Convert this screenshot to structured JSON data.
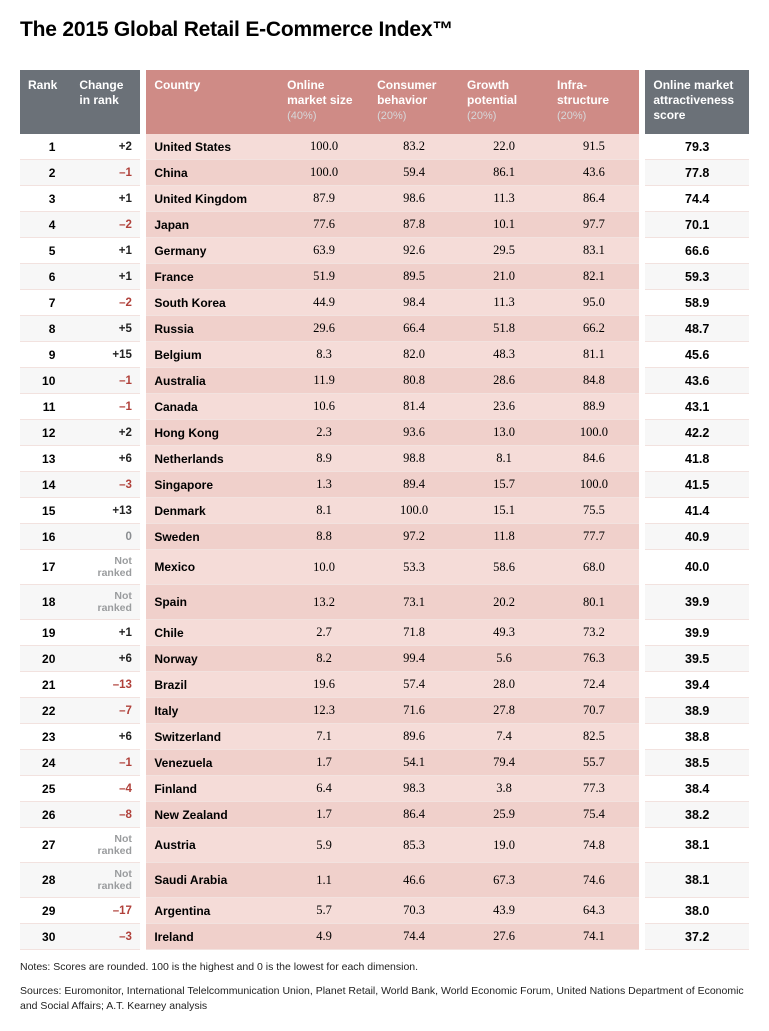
{
  "title": "The 2015 Global Retail E-Commerce Index™",
  "columns": {
    "rank": "Rank",
    "change": "Change in rank",
    "country": "Country",
    "market": "Online market size",
    "market_sub": "(40%)",
    "behavior": "Consumer behavior",
    "behavior_sub": "(20%)",
    "growth": "Growth potential",
    "growth_sub": "(20%)",
    "infra": "Infra-structure",
    "infra_sub": "(20%)",
    "score": "Online market attractiveness score"
  },
  "change_colors": {
    "pos": "#222222",
    "neg": "#b0403a",
    "zero": "#8a8d90",
    "nr": "#9a9c9e"
  },
  "bg_colors": {
    "header_grey": "#6b7178",
    "header_pink": "#cf8b86",
    "row_pink_a": "#f5dcd8",
    "row_pink_b": "#f0d0cb",
    "row_white_b": "#f7f7f7"
  },
  "rows": [
    {
      "rank": "1",
      "change": "+2",
      "ctype": "pos",
      "country": "United States",
      "market": "100.0",
      "behavior": "83.2",
      "growth": "22.0",
      "infra": "91.5",
      "score": "79.3"
    },
    {
      "rank": "2",
      "change": "–1",
      "ctype": "neg",
      "country": "China",
      "market": "100.0",
      "behavior": "59.4",
      "growth": "86.1",
      "infra": "43.6",
      "score": "77.8"
    },
    {
      "rank": "3",
      "change": "+1",
      "ctype": "pos",
      "country": "United Kingdom",
      "market": "87.9",
      "behavior": "98.6",
      "growth": "11.3",
      "infra": "86.4",
      "score": "74.4"
    },
    {
      "rank": "4",
      "change": "–2",
      "ctype": "neg",
      "country": "Japan",
      "market": "77.6",
      "behavior": "87.8",
      "growth": "10.1",
      "infra": "97.7",
      "score": "70.1"
    },
    {
      "rank": "5",
      "change": "+1",
      "ctype": "pos",
      "country": "Germany",
      "market": "63.9",
      "behavior": "92.6",
      "growth": "29.5",
      "infra": "83.1",
      "score": "66.6"
    },
    {
      "rank": "6",
      "change": "+1",
      "ctype": "pos",
      "country": "France",
      "market": "51.9",
      "behavior": "89.5",
      "growth": "21.0",
      "infra": "82.1",
      "score": "59.3"
    },
    {
      "rank": "7",
      "change": "–2",
      "ctype": "neg",
      "country": "South Korea",
      "market": "44.9",
      "behavior": "98.4",
      "growth": "11.3",
      "infra": "95.0",
      "score": "58.9"
    },
    {
      "rank": "8",
      "change": "+5",
      "ctype": "pos",
      "country": "Russia",
      "market": "29.6",
      "behavior": "66.4",
      "growth": "51.8",
      "infra": "66.2",
      "score": "48.7"
    },
    {
      "rank": "9",
      "change": "+15",
      "ctype": "pos",
      "country": "Belgium",
      "market": "8.3",
      "behavior": "82.0",
      "growth": "48.3",
      "infra": "81.1",
      "score": "45.6"
    },
    {
      "rank": "10",
      "change": "–1",
      "ctype": "neg",
      "country": "Australia",
      "market": "11.9",
      "behavior": "80.8",
      "growth": "28.6",
      "infra": "84.8",
      "score": "43.6"
    },
    {
      "rank": "11",
      "change": "–1",
      "ctype": "neg",
      "country": "Canada",
      "market": "10.6",
      "behavior": "81.4",
      "growth": "23.6",
      "infra": "88.9",
      "score": "43.1"
    },
    {
      "rank": "12",
      "change": "+2",
      "ctype": "pos",
      "country": "Hong Kong",
      "market": "2.3",
      "behavior": "93.6",
      "growth": "13.0",
      "infra": "100.0",
      "score": "42.2"
    },
    {
      "rank": "13",
      "change": "+6",
      "ctype": "pos",
      "country": "Netherlands",
      "market": "8.9",
      "behavior": "98.8",
      "growth": "8.1",
      "infra": "84.6",
      "score": "41.8"
    },
    {
      "rank": "14",
      "change": "–3",
      "ctype": "neg",
      "country": "Singapore",
      "market": "1.3",
      "behavior": "89.4",
      "growth": "15.7",
      "infra": "100.0",
      "score": "41.5"
    },
    {
      "rank": "15",
      "change": "+13",
      "ctype": "pos",
      "country": "Denmark",
      "market": "8.1",
      "behavior": "100.0",
      "growth": "15.1",
      "infra": "75.5",
      "score": "41.4"
    },
    {
      "rank": "16",
      "change": "0",
      "ctype": "zero",
      "country": "Sweden",
      "market": "8.8",
      "behavior": "97.2",
      "growth": "11.8",
      "infra": "77.7",
      "score": "40.9"
    },
    {
      "rank": "17",
      "change": "Not ranked",
      "ctype": "nr",
      "country": "Mexico",
      "market": "10.0",
      "behavior": "53.3",
      "growth": "58.6",
      "infra": "68.0",
      "score": "40.0"
    },
    {
      "rank": "18",
      "change": "Not ranked",
      "ctype": "nr",
      "country": "Spain",
      "market": "13.2",
      "behavior": "73.1",
      "growth": "20.2",
      "infra": "80.1",
      "score": "39.9"
    },
    {
      "rank": "19",
      "change": "+1",
      "ctype": "pos",
      "country": "Chile",
      "market": "2.7",
      "behavior": "71.8",
      "growth": "49.3",
      "infra": "73.2",
      "score": "39.9"
    },
    {
      "rank": "20",
      "change": "+6",
      "ctype": "pos",
      "country": "Norway",
      "market": "8.2",
      "behavior": "99.4",
      "growth": "5.6",
      "infra": "76.3",
      "score": "39.5"
    },
    {
      "rank": "21",
      "change": "–13",
      "ctype": "neg",
      "country": "Brazil",
      "market": "19.6",
      "behavior": "57.4",
      "growth": "28.0",
      "infra": "72.4",
      "score": "39.4"
    },
    {
      "rank": "22",
      "change": "–7",
      "ctype": "neg",
      "country": "Italy",
      "market": "12.3",
      "behavior": "71.6",
      "growth": "27.8",
      "infra": "70.7",
      "score": "38.9"
    },
    {
      "rank": "23",
      "change": "+6",
      "ctype": "pos",
      "country": "Switzerland",
      "market": "7.1",
      "behavior": "89.6",
      "growth": "7.4",
      "infra": "82.5",
      "score": "38.8"
    },
    {
      "rank": "24",
      "change": "–1",
      "ctype": "neg",
      "country": "Venezuela",
      "market": "1.7",
      "behavior": "54.1",
      "growth": "79.4",
      "infra": "55.7",
      "score": "38.5"
    },
    {
      "rank": "25",
      "change": "–4",
      "ctype": "neg",
      "country": "Finland",
      "market": "6.4",
      "behavior": "98.3",
      "growth": "3.8",
      "infra": "77.3",
      "score": "38.4"
    },
    {
      "rank": "26",
      "change": "–8",
      "ctype": "neg",
      "country": "New Zealand",
      "market": "1.7",
      "behavior": "86.4",
      "growth": "25.9",
      "infra": "75.4",
      "score": "38.2"
    },
    {
      "rank": "27",
      "change": "Not ranked",
      "ctype": "nr",
      "country": "Austria",
      "market": "5.9",
      "behavior": "85.3",
      "growth": "19.0",
      "infra": "74.8",
      "score": "38.1"
    },
    {
      "rank": "28",
      "change": "Not ranked",
      "ctype": "nr",
      "country": "Saudi Arabia",
      "market": "1.1",
      "behavior": "46.6",
      "growth": "67.3",
      "infra": "74.6",
      "score": "38.1"
    },
    {
      "rank": "29",
      "change": "–17",
      "ctype": "neg",
      "country": "Argentina",
      "market": "5.7",
      "behavior": "70.3",
      "growth": "43.9",
      "infra": "64.3",
      "score": "38.0"
    },
    {
      "rank": "30",
      "change": "–3",
      "ctype": "neg",
      "country": "Ireland",
      "market": "4.9",
      "behavior": "74.4",
      "growth": "27.6",
      "infra": "74.1",
      "score": "37.2"
    }
  ],
  "notes": "Notes: Scores are rounded. 100 is the highest and 0 is the lowest for each dimension.",
  "sources": "Sources: Euromonitor, International Telelcommunication Union, Planet Retail, World Bank, World Economic Forum, United Nations Department of Economic and Social Affairs; A.T. Kearney analysis"
}
